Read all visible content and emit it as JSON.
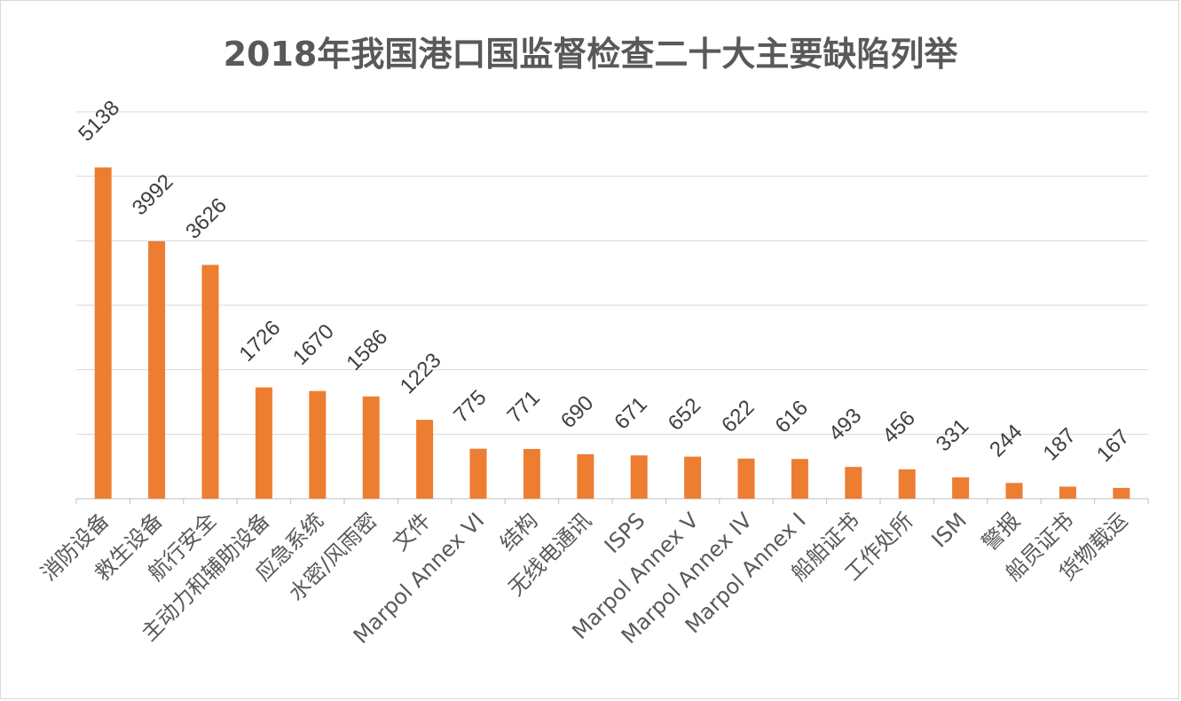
{
  "chart_data": {
    "type": "bar",
    "title": "2018年我国港口国监督检查二十大主要缺陷列举",
    "xlabel": "",
    "ylabel": "",
    "ylim": [
      0,
      6000
    ],
    "grid": true,
    "legend": "none",
    "bar_color": "#ed7d31",
    "categories": [
      "消防设备",
      "救生设备",
      "航行安全",
      "主动力和辅助设备",
      "应急系统",
      "水密/风雨密",
      "文件",
      "Marpol Annex VI",
      "结构",
      "无线电通讯",
      "ISPS",
      "Marpol Annex V",
      "Marpol Annex IV",
      "Marpol Annex I",
      "船舶证书",
      "工作处所",
      "ISM",
      "警报",
      "船员证书",
      "货物载运"
    ],
    "values": [
      5138,
      3992,
      3626,
      1726,
      1670,
      1586,
      1223,
      775,
      771,
      690,
      671,
      652,
      622,
      616,
      493,
      456,
      331,
      244,
      187,
      167
    ]
  }
}
